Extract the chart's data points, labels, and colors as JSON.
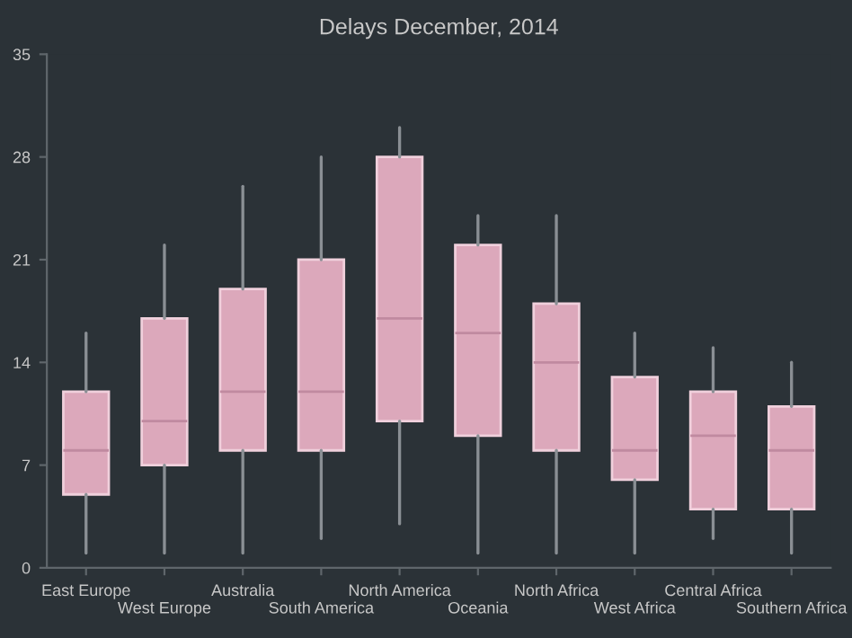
{
  "chart_data": {
    "type": "box",
    "title": "Delays December, 2014",
    "categories": [
      "East Europe",
      "West Europe",
      "Australia",
      "South America",
      "North America",
      "Oceania",
      "North Africa",
      "West Africa",
      "Central Africa",
      "Southern Africa"
    ],
    "color": "#dca8bb",
    "boxes": [
      {
        "low": 1,
        "q1": 5,
        "median": 8,
        "q3": 12,
        "high": 16
      },
      {
        "low": 1,
        "q1": 7,
        "median": 10,
        "q3": 17,
        "high": 22
      },
      {
        "low": 1,
        "q1": 8,
        "median": 12,
        "q3": 19,
        "high": 26
      },
      {
        "low": 2,
        "q1": 8,
        "median": 12,
        "q3": 21,
        "high": 28
      },
      {
        "low": 3,
        "q1": 10,
        "median": 17,
        "q3": 28,
        "high": 30
      },
      {
        "low": 1,
        "q1": 9,
        "median": 16,
        "q3": 22,
        "high": 24
      },
      {
        "low": 1,
        "q1": 8,
        "median": 14,
        "q3": 18,
        "high": 24
      },
      {
        "low": 1,
        "q1": 6,
        "median": 8,
        "q3": 13,
        "high": 16
      },
      {
        "low": 2,
        "q1": 4,
        "median": 9,
        "q3": 12,
        "high": 15
      },
      {
        "low": 1,
        "q1": 4,
        "median": 8,
        "q3": 11,
        "high": 14
      }
    ],
    "ylim": [
      0,
      35
    ],
    "yticks": [
      0,
      7,
      14,
      21,
      28,
      35
    ],
    "grid": false
  }
}
